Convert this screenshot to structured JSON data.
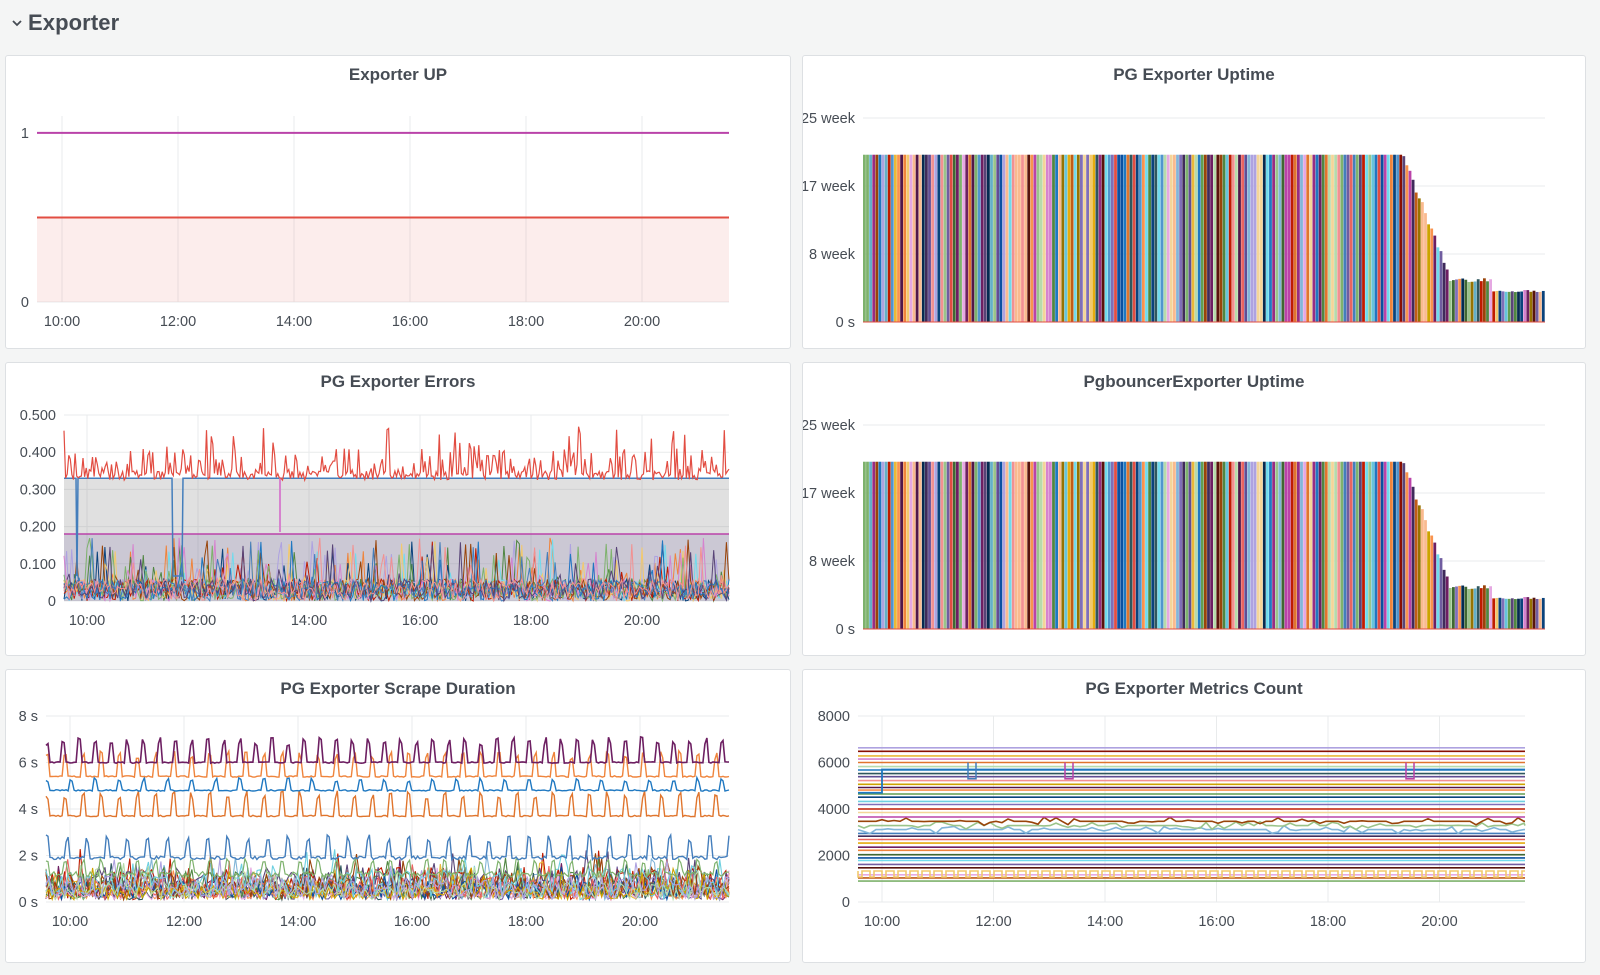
{
  "row": {
    "title": "Exporter",
    "icon": "chevron-down-icon"
  },
  "colors": {
    "palette": [
      "#7eb26d",
      "#eab839",
      "#6ed0e0",
      "#ef843c",
      "#e24d42",
      "#1f78c1",
      "#ba43a9",
      "#705da0",
      "#508642",
      "#cca300",
      "#447ebc",
      "#c15c17",
      "#890f02",
      "#0a437c",
      "#6d1f62",
      "#584477",
      "#b7dbab",
      "#f4d598",
      "#70dbed",
      "#f9ba8f",
      "#f29191",
      "#82b5d8",
      "#e5a8e2",
      "#aea2e0",
      "#629e51",
      "#e5ac0e",
      "#64b0c8",
      "#e0752d",
      "#bf1b00",
      "#0a50a1",
      "#962d82",
      "#614d93",
      "#9ac48a",
      "#f2c96d",
      "#65c5db",
      "#f9934e",
      "#ea6460",
      "#5195ce",
      "#d683ce",
      "#806eb7",
      "#3f6833",
      "#967302",
      "#2f575e",
      "#99440a",
      "#58140c",
      "#052b51",
      "#511749",
      "#3f2b5b"
    ],
    "grid": "#e9ebec"
  },
  "panels": [
    {
      "title": "Exporter UP",
      "chart_data": {
        "type": "line",
        "x_ticks": [
          "10:00",
          "12:00",
          "14:00",
          "16:00",
          "18:00",
          "20:00"
        ],
        "y_ticks": [
          "0",
          "1"
        ],
        "ylim": [
          0,
          1.1
        ],
        "series": [
          {
            "values": [
              1,
              1
            ],
            "color": "#ba43a9",
            "fill": false
          },
          {
            "values": [
              0.5,
              0.5
            ],
            "color": "#e24d42",
            "fill": true
          }
        ]
      }
    },
    {
      "title": "PG Exporter Uptime",
      "chart_data": {
        "type": "bar",
        "x_ticks": [],
        "y_ticks": [
          "0 s",
          "8 week",
          "17 week",
          "25 week"
        ],
        "ylim": [
          0,
          25
        ],
        "bars": "many host series, ~20.5 week plateau then descending to ~3.8 week"
      }
    },
    {
      "title": "PG Exporter Errors",
      "chart_data": {
        "type": "line",
        "x_ticks": [
          "10:00",
          "12:00",
          "14:00",
          "16:00",
          "18:00",
          "20:00"
        ],
        "y_ticks": [
          "0",
          "0.100",
          "0.200",
          "0.300",
          "0.400",
          "0.500"
        ],
        "ylim": [
          0,
          0.5
        ],
        "series": [
          {
            "values": "noisy ~0.33–0.47",
            "color": "#e24d42"
          },
          {
            "values": "~0.33",
            "color": "#447ebc"
          },
          {
            "values": "~0.18",
            "color": "#ba43a9"
          }
        ]
      }
    },
    {
      "title": "PgbouncerExporter Uptime",
      "chart_data": {
        "type": "bar",
        "x_ticks": [],
        "y_ticks": [
          "0 s",
          "8 week",
          "17 week",
          "25 week"
        ],
        "ylim": [
          0,
          25
        ],
        "bars": "many host series, ~20.5 week plateau then descending to ~3.8 week"
      }
    },
    {
      "title": "PG Exporter Scrape Duration",
      "chart_data": {
        "type": "line",
        "x_ticks": [
          "10:00",
          "12:00",
          "14:00",
          "16:00",
          "18:00",
          "20:00"
        ],
        "y_ticks": [
          "0 s",
          "2 s",
          "4 s",
          "6 s",
          "8 s"
        ],
        "ylim": [
          0,
          8
        ],
        "series": [
          {
            "values": "~6 s with spikes to ~7 s",
            "color": "#6d1f62"
          },
          {
            "values": "~5.4 s with spikes",
            "color": "#ef843c"
          },
          {
            "values": "~4.8 s",
            "color": "#1f78c1"
          },
          {
            "values": "~3.7 s with spikes",
            "color": "#e0752d"
          },
          {
            "values": "~2 s with spikes",
            "color": "#447ebc"
          }
        ]
      }
    },
    {
      "title": "PG Exporter Metrics Count",
      "chart_data": {
        "type": "line",
        "x_ticks": [
          "10:00",
          "12:00",
          "14:00",
          "16:00",
          "18:00",
          "20:00"
        ],
        "y_ticks": [
          "0",
          "2000",
          "4000",
          "6000",
          "8000"
        ],
        "ylim": [
          0,
          8000
        ],
        "series": "many flat host series between ~1000 and ~6600"
      }
    }
  ]
}
